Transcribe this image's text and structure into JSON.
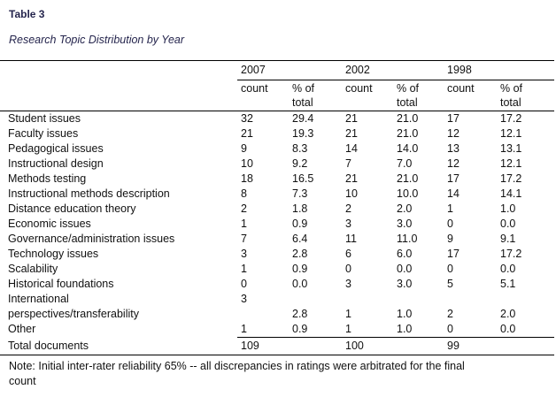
{
  "title": "Table 3",
  "caption": "Research Topic Distribution by Year",
  "table": {
    "year_headers": [
      "2007",
      "2002",
      "1998"
    ],
    "count_header": "count",
    "pct_header": "% of\ntotal",
    "rows": [
      {
        "label": "Student issues",
        "values": [
          "32",
          "29.4",
          "21",
          "21.0",
          "17",
          "17.2"
        ]
      },
      {
        "label": "Faculty issues",
        "values": [
          "21",
          "19.3",
          "21",
          "21.0",
          "12",
          "12.1"
        ]
      },
      {
        "label": "Pedagogical issues",
        "values": [
          "9",
          "8.3",
          "14",
          "14.0",
          "13",
          "13.1"
        ]
      },
      {
        "label": "Instructional design",
        "values": [
          "10",
          "9.2",
          "7",
          "7.0",
          "12",
          "12.1"
        ]
      },
      {
        "label": "Methods testing",
        "values": [
          "18",
          "16.5",
          "21",
          "21.0",
          "17",
          "17.2"
        ]
      },
      {
        "label": "Instructional methods description",
        "values": [
          "8",
          "7.3",
          "10",
          "10.0",
          "14",
          "14.1"
        ]
      },
      {
        "label": "Distance education theory",
        "values": [
          "2",
          "1.8",
          "2",
          "2.0",
          "1",
          "1.0"
        ]
      },
      {
        "label": "Economic issues",
        "values": [
          "1",
          "0.9",
          "3",
          "3.0",
          "0",
          "0.0"
        ]
      },
      {
        "label": "Governance/administration issues",
        "values": [
          "7",
          "6.4",
          "11",
          "11.0",
          "9",
          "9.1"
        ]
      },
      {
        "label": "Technology issues",
        "values": [
          "3",
          "2.8",
          "6",
          "6.0",
          "17",
          "17.2"
        ]
      },
      {
        "label": "Scalability",
        "values": [
          "1",
          "0.9",
          "0",
          "0.0",
          "0",
          "0.0"
        ]
      },
      {
        "label": "Historical foundations",
        "values": [
          "0",
          "0.0",
          "3",
          "3.0",
          "5",
          "5.1"
        ]
      },
      {
        "label": "International",
        "values": [
          "3",
          "",
          "",
          "",
          "",
          ""
        ]
      },
      {
        "label": "perspectives/transferability",
        "values": [
          "",
          "2.8",
          "1",
          "1.0",
          "2",
          "2.0"
        ]
      },
      {
        "label": "Other",
        "values": [
          "1",
          "0.9",
          "1",
          "1.0",
          "0",
          "0.0"
        ]
      }
    ],
    "total_row": {
      "label": "Total documents",
      "values": [
        "109",
        "",
        "100",
        "",
        "99",
        ""
      ]
    }
  },
  "note": "Note: Initial inter-rater reliability 65% -- all discrepancies in ratings were arbitrated for the final\ncount",
  "colors": {
    "title_text": "#25254D",
    "body_text": "#111111",
    "rule": "#000000",
    "background": "#FFFFFF"
  }
}
